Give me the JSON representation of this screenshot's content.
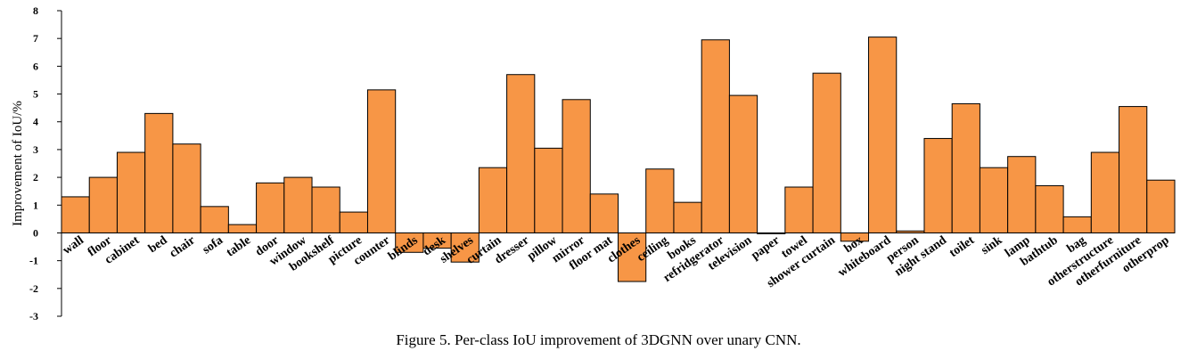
{
  "caption": "Figure 5. Per-class IoU improvement of 3DGNN over unary CNN.",
  "colors": {
    "bar_fill": "#F79646",
    "bar_stroke": "#000000",
    "axis": "#000000"
  },
  "chart_data": {
    "type": "bar",
    "title": "",
    "xlabel": "",
    "ylabel": "Improvement of IoU/%",
    "ylim": [
      -3,
      8
    ],
    "yticks": [
      -3,
      -2,
      -1,
      0,
      1,
      2,
      3,
      4,
      5,
      6,
      7,
      8
    ],
    "grid": false,
    "legend": "none",
    "categories": [
      "wall",
      "floor",
      "cabinet",
      "bed",
      "chair",
      "sofa",
      "table",
      "door",
      "window",
      "bookshelf",
      "picture",
      "counter",
      "blinds",
      "desk",
      "shelves",
      "curtain",
      "dresser",
      "pillow",
      "mirror",
      "floor mat",
      "clothes",
      "ceiling",
      "books",
      "refridgerator",
      "television",
      "paper",
      "towel",
      "shower curtain",
      "box",
      "whiteboard",
      "person",
      "night stand",
      "toilet",
      "sink",
      "lamp",
      "bathtub",
      "bag",
      "otherstructure",
      "otherfurniture",
      "otherprop"
    ],
    "values": [
      1.3,
      2.0,
      2.9,
      4.3,
      3.2,
      0.95,
      0.3,
      1.8,
      2.0,
      1.65,
      0.75,
      5.15,
      -0.7,
      -0.55,
      -1.05,
      2.35,
      5.7,
      3.05,
      4.8,
      1.4,
      -1.75,
      2.3,
      1.1,
      6.95,
      4.95,
      -0.03,
      1.65,
      5.75,
      -0.3,
      7.05,
      0.07,
      3.4,
      4.65,
      2.35,
      2.75,
      1.7,
      0.58,
      2.9,
      4.55,
      1.9
    ]
  }
}
